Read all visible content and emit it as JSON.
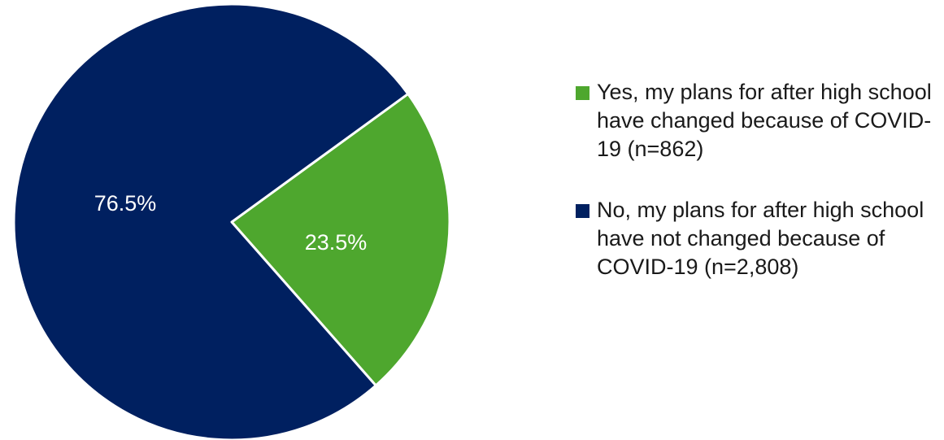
{
  "chart_data": {
    "type": "pie",
    "slices": [
      {
        "label": "Yes, my plans for after high school have changed because of COVID-19 (n=862)",
        "value": 23.5,
        "display": "23.5%",
        "color": "#4ea72e"
      },
      {
        "label": "No, my plans for after high school have not changed because of COVID-19 (n=2,808)",
        "value": 76.5,
        "display": "76.5%",
        "color": "#002060"
      }
    ],
    "legend_position": "right"
  }
}
